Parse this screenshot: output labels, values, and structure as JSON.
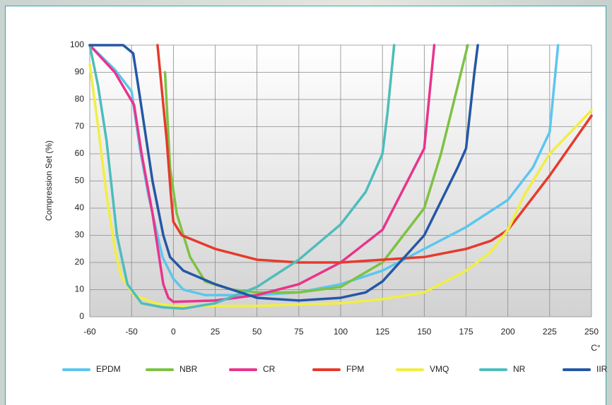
{
  "chart_data": {
    "type": "line",
    "y_label": "Compression Set (%)",
    "x_label": "C°",
    "xlim": [
      -60,
      250
    ],
    "xticks": [
      -60,
      -50,
      0,
      25,
      50,
      75,
      100,
      125,
      150,
      175,
      200,
      225,
      250
    ],
    "ylim": [
      0,
      100
    ],
    "yticks": [
      0,
      10,
      20,
      30,
      40,
      50,
      60,
      70,
      80,
      90,
      100
    ],
    "grid": true,
    "legend": "bottom",
    "series": [
      {
        "name": "EPDM",
        "color": "#5cc6ee",
        "x": [
          -60,
          -54,
          -50,
          -40,
          -30,
          -13,
          0,
          6,
          19,
          50,
          75,
          100,
          125,
          150,
          175,
          200,
          215,
          225,
          230
        ],
        "values": [
          100,
          91,
          83,
          62,
          45,
          22,
          14,
          10,
          8,
          8,
          9,
          12,
          17,
          25,
          33,
          43,
          55,
          68,
          100
        ]
      },
      {
        "name": "NBR",
        "color": "#7dc243",
        "x": [
          -10,
          -4,
          2,
          10,
          19,
          35,
          50,
          75,
          100,
          125,
          150,
          160,
          176
        ],
        "values": [
          90,
          55,
          38,
          22,
          13,
          10,
          9,
          9,
          11,
          20,
          40,
          60,
          100
        ]
      },
      {
        "name": "CR",
        "color": "#e8348c",
        "x": [
          -60,
          -54,
          -47,
          -38,
          -25,
          -12,
          -6,
          0,
          25,
          50,
          75,
          100,
          125,
          140,
          150,
          156
        ],
        "values": [
          100,
          90,
          78,
          60,
          38,
          12,
          7,
          5.5,
          6,
          8,
          12,
          20,
          32,
          50,
          62,
          100
        ]
      },
      {
        "name": "FPM",
        "color": "#e63a2c",
        "x": [
          -19,
          -8,
          -3,
          0,
          5,
          25,
          50,
          75,
          100,
          125,
          150,
          175,
          190,
          200,
          225,
          250
        ],
        "values": [
          100,
          65,
          45,
          35,
          30,
          25,
          21,
          20,
          20,
          21,
          22,
          25,
          28,
          32,
          52,
          74
        ]
      },
      {
        "name": "VMQ",
        "color": "#f1ee45",
        "x": [
          -60,
          -58,
          -56,
          -54,
          -52.5,
          -47,
          -21,
          0,
          50,
          100,
          125,
          150,
          175,
          190,
          200,
          210,
          225,
          250
        ],
        "values": [
          93,
          70,
          45,
          25,
          15,
          8,
          5,
          4,
          4,
          5,
          6.5,
          9,
          17,
          24,
          32,
          45,
          60,
          76
        ]
      },
      {
        "name": "NR",
        "color": "#4dbdbb",
        "x": [
          -60,
          -58,
          -56,
          -53.5,
          -51,
          -38,
          -13,
          6,
          25,
          50,
          75,
          100,
          115,
          125,
          128,
          132
        ],
        "values": [
          100,
          85,
          65,
          30,
          12,
          5,
          3.5,
          3,
          5,
          11,
          21,
          34,
          46,
          60,
          75,
          100
        ]
      },
      {
        "name": "IIR",
        "color": "#2557a5",
        "x": [
          -60,
          -52,
          -48,
          -42,
          -25,
          -12,
          -4,
          6,
          25,
          50,
          75,
          100,
          115,
          125,
          150,
          170,
          175,
          180,
          182
        ],
        "values": [
          100,
          100,
          97,
          85,
          50,
          30,
          22,
          17,
          12,
          7,
          6,
          7,
          9,
          13,
          30,
          55,
          62,
          90,
          100
        ]
      }
    ]
  }
}
